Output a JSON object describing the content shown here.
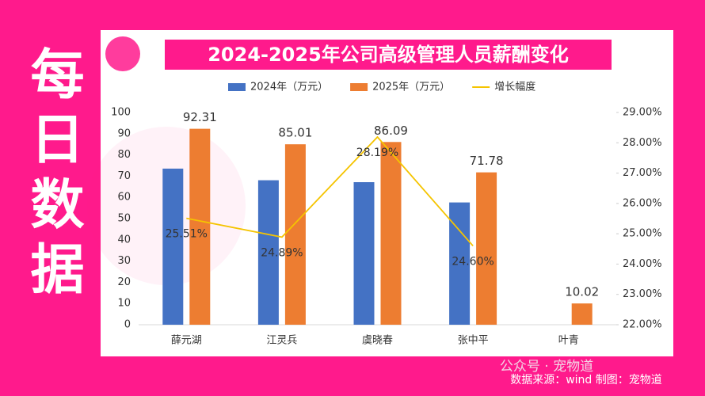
{
  "side_text": "每日数据",
  "footer": {
    "watermark": "公众号 · 宠物道",
    "source": "数据来源：wind   制图：宠物道"
  },
  "chart_data": {
    "type": "bar",
    "title": "2024-2025年公司高级管理人员薪酬变化",
    "categories": [
      "薛元湖",
      "江灵兵",
      "虞晓春",
      "张中平",
      "叶青"
    ],
    "series": [
      {
        "name": "2024年（万元）",
        "color": "#4472c4",
        "values": [
          73.55,
          68.07,
          67.16,
          57.61,
          null
        ]
      },
      {
        "name": "2025年（万元）",
        "color": "#ed7d31",
        "values": [
          92.31,
          85.01,
          86.09,
          71.78,
          10.02
        ]
      },
      {
        "name": "增长幅度",
        "color": "#f5c400",
        "type": "line",
        "axis": "y2",
        "values": [
          25.51,
          24.89,
          28.19,
          24.6,
          null
        ],
        "value_labels": [
          "25.51%",
          "24.89%",
          "28.19%",
          "24.60%",
          null
        ]
      }
    ],
    "ylim": [
      0,
      100
    ],
    "yticks": [
      0,
      10,
      20,
      30,
      40,
      50,
      60,
      70,
      80,
      90,
      100
    ],
    "y2lim": [
      22,
      29
    ],
    "y2ticks": [
      {
        "value": 22,
        "label": "22.00%"
      },
      {
        "value": 23,
        "label": "23.00%"
      },
      {
        "value": 24,
        "label": "24.00%"
      },
      {
        "value": 25,
        "label": "25.00%"
      },
      {
        "value": 26,
        "label": "26.00%"
      },
      {
        "value": 27,
        "label": "27.00%"
      },
      {
        "value": 28,
        "label": "28.00%"
      },
      {
        "value": 29,
        "label": "29.00%"
      }
    ],
    "grid": false,
    "legend": "top"
  }
}
